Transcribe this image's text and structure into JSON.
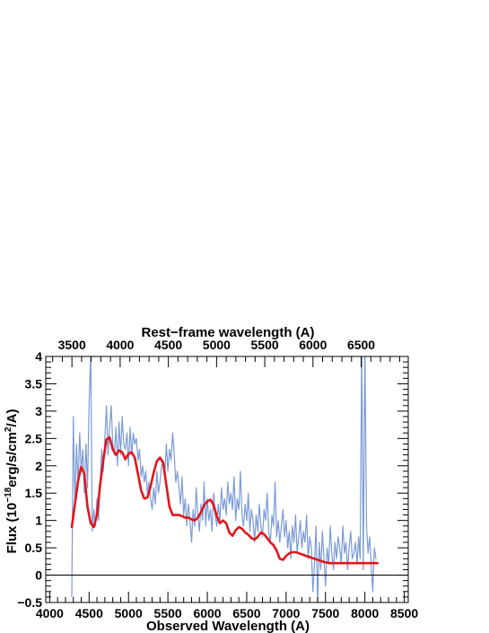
{
  "chart_data": {
    "type": "line",
    "title": "",
    "xlabel": "Observed Wavelength (A)",
    "ylabel_parts": {
      "pre": "Flux (10",
      "sup1": "−18",
      "mid": "erg/s/cm",
      "sup2": "2",
      "post": "/A)"
    },
    "top_xlabel": "Rest−frame wavelength (A)",
    "xlim": [
      3950,
      8550
    ],
    "ylim": [
      -0.5,
      4.0
    ],
    "x_ticks": [
      4000,
      4500,
      5000,
      5500,
      6000,
      6500,
      7000,
      7500,
      8000,
      8500
    ],
    "y_ticks": [
      -0.5,
      0,
      0.5,
      1,
      1.5,
      2,
      2.5,
      3,
      3.5,
      4
    ],
    "y_tick_labels": [
      "−0.5",
      "0",
      "0.5",
      "1",
      "1.5",
      "2",
      "2.5",
      "3",
      "3.5",
      "4"
    ],
    "top_ticks_rest": [
      3500,
      4000,
      4500,
      5000,
      5500,
      6000,
      6500
    ],
    "rest_frame_factor": 1.2235,
    "zero_line": 0,
    "grid": false,
    "series": [
      {
        "role": "observed-spectrum",
        "color": "#7b9bd6",
        "x": [
          4280,
          4300,
          4320,
          4340,
          4360,
          4380,
          4400,
          4420,
          4440,
          4460,
          4480,
          4500,
          4520,
          4540,
          4560,
          4580,
          4600,
          4620,
          4640,
          4660,
          4680,
          4700,
          4720,
          4740,
          4760,
          4780,
          4800,
          4820,
          4840,
          4860,
          4880,
          4900,
          4920,
          4940,
          4960,
          4980,
          5000,
          5020,
          5040,
          5060,
          5080,
          5100,
          5120,
          5140,
          5160,
          5180,
          5200,
          5220,
          5240,
          5260,
          5280,
          5300,
          5320,
          5340,
          5360,
          5380,
          5400,
          5420,
          5440,
          5460,
          5480,
          5500,
          5520,
          5540,
          5560,
          5580,
          5600,
          5620,
          5640,
          5660,
          5680,
          5700,
          5720,
          5740,
          5760,
          5780,
          5800,
          5820,
          5840,
          5860,
          5880,
          5900,
          5920,
          5940,
          5960,
          5980,
          6000,
          6020,
          6040,
          6060,
          6080,
          6100,
          6120,
          6140,
          6160,
          6180,
          6200,
          6220,
          6240,
          6260,
          6280,
          6300,
          6320,
          6340,
          6360,
          6380,
          6400,
          6420,
          6440,
          6460,
          6480,
          6500,
          6520,
          6540,
          6560,
          6580,
          6600,
          6620,
          6640,
          6660,
          6680,
          6700,
          6720,
          6740,
          6760,
          6780,
          6800,
          6820,
          6840,
          6860,
          6880,
          6900,
          6920,
          6940,
          6960,
          6980,
          7000,
          7020,
          7040,
          7060,
          7080,
          7100,
          7120,
          7140,
          7160,
          7180,
          7200,
          7220,
          7240,
          7260,
          7280,
          7300,
          7320,
          7340,
          7360,
          7380,
          7400,
          7420,
          7440,
          7460,
          7480,
          7500,
          7520,
          7540,
          7560,
          7580,
          7600,
          7620,
          7640,
          7660,
          7680,
          7700,
          7720,
          7740,
          7760,
          7780,
          7800,
          7820,
          7840,
          7860,
          7880,
          7900,
          7920,
          7940,
          7960,
          7980,
          8000,
          8020,
          8040,
          8060,
          8080,
          8100,
          8120,
          8140
        ],
        "y": [
          -0.4,
          2.9,
          1.3,
          2.4,
          1.6,
          2.6,
          1.9,
          2.3,
          1.5,
          2.4,
          1.6,
          3.1,
          4.1,
          0.8,
          1.2,
          0.9,
          1.4,
          1.0,
          1.7,
          2.3,
          1.9,
          2.5,
          3.1,
          2.2,
          2.7,
          3.1,
          2.4,
          2.2,
          2.7,
          2.0,
          2.8,
          2.2,
          2.9,
          2.4,
          2.3,
          2.6,
          2.0,
          2.7,
          2.2,
          2.6,
          2.4,
          2.5,
          2.1,
          2.3,
          1.8,
          2.0,
          1.7,
          1.9,
          1.5,
          1.7,
          1.4,
          1.2,
          1.6,
          1.3,
          1.9,
          1.5,
          1.7,
          2.0,
          2.1,
          1.8,
          2.4,
          1.9,
          2.3,
          2.1,
          2.6,
          2.2,
          1.7,
          1.9,
          1.6,
          1.3,
          1.8,
          1.1,
          1.4,
          0.9,
          1.3,
          1.0,
          0.6,
          1.2,
          0.9,
          1.6,
          1.1,
          0.8,
          1.3,
          1.0,
          1.7,
          0.9,
          1.4,
          1.0,
          1.2,
          0.8,
          1.5,
          1.1,
          0.9,
          1.3,
          1.0,
          1.6,
          1.2,
          1.4,
          1.1,
          1.7,
          1.3,
          1.5,
          1.2,
          1.8,
          1.0,
          1.4,
          1.2,
          1.9,
          1.1,
          0.9,
          1.3,
          1.0,
          1.5,
          0.8,
          1.2,
          1.0,
          0.6,
          1.1,
          0.8,
          1.3,
          0.9,
          0.7,
          1.2,
          1.0,
          1.5,
          0.8,
          0.6,
          1.1,
          0.9,
          1.7,
          0.7,
          1.0,
          0.6,
          0.9,
          1.2,
          0.7,
          1.0,
          0.5,
          0.8,
          0.3,
          0.9,
          0.6,
          1.1,
          0.4,
          0.7,
          1.0,
          0.5,
          0.8,
          0.6,
          1.1,
          0.3,
          0.7,
          0.5,
          -0.3,
          0.2,
          0.9,
          -0.5,
          0.6,
          0.1,
          0.8,
          0.3,
          -0.2,
          0.5,
          0.2,
          0.9,
          0.4,
          0.1,
          0.6,
          0.3,
          0.7,
          0.5,
          0.2,
          0.9,
          0.4,
          0.6,
          0.1,
          0.5,
          0.8,
          0.3,
          0.4,
          0.6,
          0.2,
          0.7,
          0.3,
          4.2,
          0.1,
          4.2,
          0.9,
          0.4,
          0.7,
          0.2,
          -0.3,
          0.5,
          0.3
        ]
      },
      {
        "role": "smoothed-fit",
        "color": "#e3151c",
        "x": [
          4280,
          4320,
          4360,
          4400,
          4440,
          4480,
          4520,
          4560,
          4600,
          4640,
          4680,
          4720,
          4760,
          4800,
          4840,
          4880,
          4920,
          4960,
          5000,
          5040,
          5080,
          5120,
          5160,
          5200,
          5240,
          5280,
          5320,
          5360,
          5400,
          5440,
          5480,
          5520,
          5560,
          5600,
          5640,
          5680,
          5720,
          5760,
          5800,
          5840,
          5880,
          5920,
          5960,
          6000,
          6040,
          6080,
          6120,
          6160,
          6200,
          6240,
          6280,
          6320,
          6360,
          6400,
          6440,
          6480,
          6520,
          6560,
          6600,
          6640,
          6680,
          6720,
          6760,
          6800,
          6840,
          6880,
          6920,
          6960,
          7000,
          7040,
          7080,
          7120,
          7160,
          7200,
          7240,
          7280,
          7320,
          7360,
          7400,
          7440,
          7480,
          7520,
          7560,
          7600,
          7640,
          7680,
          7720,
          7760,
          7800,
          7840,
          7880,
          7920,
          7960,
          8000,
          8040,
          8080,
          8120,
          8160
        ],
        "y": [
          0.88,
          1.3,
          1.72,
          1.98,
          1.85,
          1.25,
          0.95,
          0.88,
          1.1,
          1.65,
          2.1,
          2.48,
          2.52,
          2.3,
          2.2,
          2.28,
          2.25,
          2.12,
          2.22,
          2.25,
          2.15,
          1.85,
          1.55,
          1.4,
          1.42,
          1.62,
          1.88,
          2.08,
          2.15,
          2.05,
          1.65,
          1.25,
          1.1,
          1.1,
          1.1,
          1.08,
          1.05,
          1.05,
          1.02,
          1.0,
          1.05,
          1.15,
          1.28,
          1.35,
          1.38,
          1.28,
          1.08,
          0.95,
          1.0,
          0.95,
          0.78,
          0.72,
          0.82,
          0.88,
          0.85,
          0.78,
          0.74,
          0.68,
          0.65,
          0.7,
          0.78,
          0.75,
          0.68,
          0.6,
          0.55,
          0.45,
          0.3,
          0.28,
          0.35,
          0.4,
          0.42,
          0.42,
          0.4,
          0.38,
          0.36,
          0.34,
          0.32,
          0.3,
          0.28,
          0.26,
          0.24,
          0.23,
          0.22,
          0.22,
          0.22,
          0.22,
          0.22,
          0.22,
          0.22,
          0.22,
          0.22,
          0.22,
          0.22,
          0.22,
          0.22,
          0.22,
          0.22,
          0.22
        ]
      }
    ]
  }
}
